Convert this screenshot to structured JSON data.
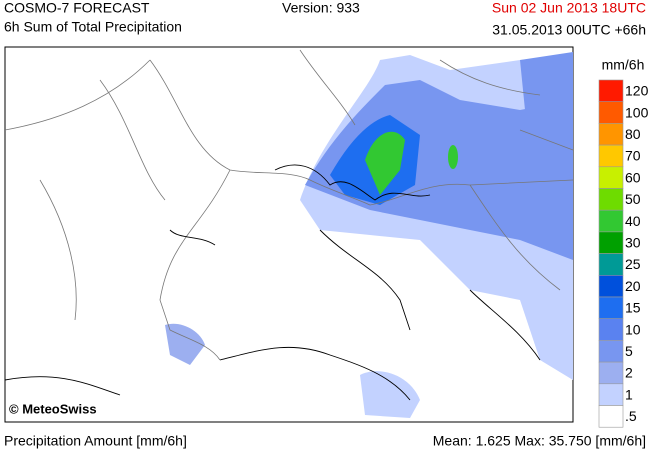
{
  "header": {
    "title": "COSMO-7 FORECAST",
    "subtitle": "6h Sum of Total Precipitation",
    "version": "Version: 933",
    "valid_time": "Sun 02 Jun 2013 18UTC",
    "run_time": "31.05.2013 00UTC +66h"
  },
  "legend": {
    "unit": "mm/6h",
    "items": [
      {
        "label": "120",
        "color": "#ff1a00"
      },
      {
        "label": "100",
        "color": "#ff5a00"
      },
      {
        "label": "80",
        "color": "#ff9500"
      },
      {
        "label": "70",
        "color": "#ffc800"
      },
      {
        "label": "60",
        "color": "#c8f000"
      },
      {
        "label": "50",
        "color": "#6edc00"
      },
      {
        "label": "40",
        "color": "#32c832"
      },
      {
        "label": "30",
        "color": "#00a000"
      },
      {
        "label": "25",
        "color": "#009a96"
      },
      {
        "label": "20",
        "color": "#0050dc"
      },
      {
        "label": "15",
        "color": "#1e6ef0"
      },
      {
        "label": "10",
        "color": "#5a82f0"
      },
      {
        "label": "5",
        "color": "#7896f0"
      },
      {
        "label": "2",
        "color": "#9caff0"
      },
      {
        "label": "1",
        "color": "#c3d2ff"
      },
      {
        "label": ".5",
        "color": "#ffffff"
      }
    ]
  },
  "copyright": "© MeteoSwiss",
  "footer": {
    "left": "Precipitation Amount [mm/6h]",
    "right": "Mean:  1.625 Max: 35.750 [mm/6h]"
  }
}
